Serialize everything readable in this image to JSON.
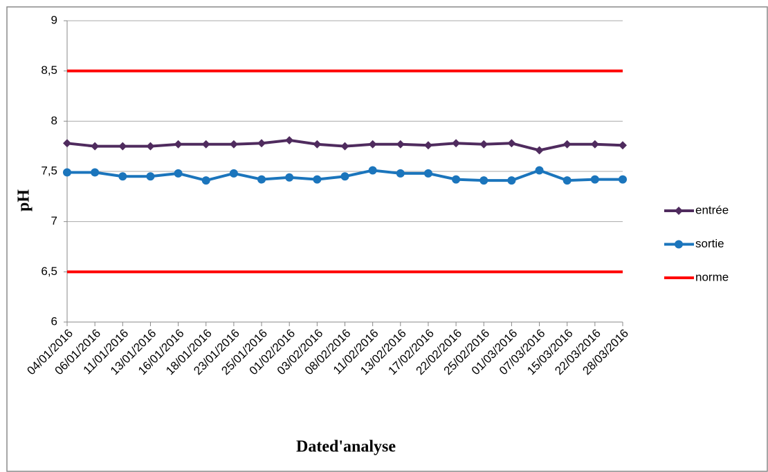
{
  "chart_data": {
    "type": "line",
    "xlabel": "Dated'analyse",
    "ylabel": "pH",
    "categories": [
      "04/01/2016",
      "06/01/2016",
      "11/01/2016",
      "13/01/2016",
      "16/01/2016",
      "18/01/2016",
      "23/01/2016",
      "25/01/2016",
      "01/02/2016",
      "03/02/2016",
      "08/02/2016",
      "11/02/2016",
      "13/02/2016",
      "17/02/2016",
      "22/02/2016",
      "25/02/2016",
      "01/03/2016",
      "07/03/2016",
      "15/03/2016",
      "22/03/2016",
      "28/03/2016"
    ],
    "series": [
      {
        "name": "entrée",
        "color": "#4f2b5e",
        "marker": "diamond",
        "values": [
          7.78,
          7.75,
          7.75,
          7.75,
          7.77,
          7.77,
          7.77,
          7.78,
          7.81,
          7.77,
          7.75,
          7.77,
          7.77,
          7.76,
          7.78,
          7.77,
          7.78,
          7.71,
          7.77,
          7.77,
          7.76
        ]
      },
      {
        "name": "sortie",
        "color": "#1b75bc",
        "marker": "circle",
        "values": [
          7.49,
          7.49,
          7.45,
          7.45,
          7.48,
          7.41,
          7.48,
          7.42,
          7.44,
          7.42,
          7.45,
          7.51,
          7.48,
          7.48,
          7.42,
          7.41,
          7.41,
          7.51,
          7.41,
          7.42,
          7.42
        ]
      }
    ],
    "norme": {
      "name": "norme",
      "color": "#ff0000",
      "values": [
        8.5,
        6.5
      ]
    },
    "ylim": [
      6,
      9
    ],
    "yticks": [
      6,
      {
        "value": 6.5,
        "label": "6,5"
      },
      7,
      {
        "value": 7.5,
        "label": "7,5"
      },
      8,
      {
        "value": 8.5,
        "label": "8,5"
      },
      9
    ],
    "grid": true,
    "legend": "right"
  }
}
